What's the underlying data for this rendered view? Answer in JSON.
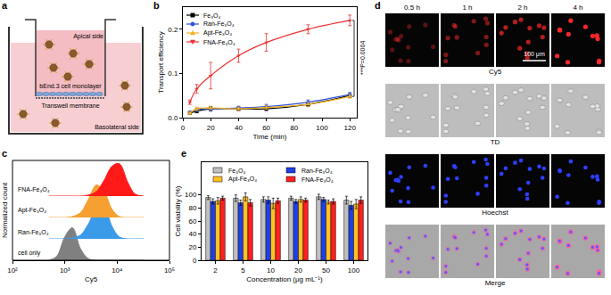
{
  "panel_labels": [
    "a",
    "b",
    "c",
    "d",
    "e"
  ],
  "diagram": {
    "apical": "Apical side",
    "monolayer": "bEnd.3 cell monolayer",
    "membrane": "Transwell membrane",
    "basolateral": "Basolateral side"
  },
  "micrographs": {
    "columns": [
      "0.5 h",
      "1 h",
      "2 h",
      "4 h"
    ],
    "rows": [
      "Cy5",
      "TD",
      "Hoechst",
      "Merge"
    ],
    "scale_bar": "100 μm"
  },
  "chart_data": [
    {
      "type": "line",
      "x_label": "Time (min)",
      "y_label": "Transport efficiency",
      "x": [
        5,
        10,
        20,
        40,
        60,
        90,
        120
      ],
      "xlim": [
        0,
        125
      ],
      "xticks": [
        0,
        20,
        40,
        60,
        80,
        100,
        120
      ],
      "ylim": [
        0,
        0.25
      ],
      "yticks": [
        {
          "value": 0,
          "label": "0.0"
        },
        0.1,
        0.2
      ],
      "legend": "upper left",
      "annotations": [
        {
          "text": "***P=0.0004"
        }
      ],
      "series": [
        {
          "name": "Fe₃O₄",
          "color": "#000000",
          "marker": "square",
          "values": [
            0.01,
            0.015,
            0.02,
            0.02,
            0.02,
            0.03,
            0.05
          ],
          "errors": [
            0.003,
            0.004,
            0.005,
            0.004,
            0.004,
            0.005,
            0.004
          ]
        },
        {
          "name": "Ran-Fe₃O₄",
          "color": "#2f4fd8",
          "marker": "circle",
          "values": [
            0.012,
            0.018,
            0.02,
            0.022,
            0.025,
            0.035,
            0.052
          ],
          "errors": [
            0.003,
            0.004,
            0.004,
            0.004,
            0.005,
            0.005,
            0.005
          ]
        },
        {
          "name": "Apt-Fe₃O₄",
          "color": "#f0b020",
          "marker": "triangle-up",
          "values": [
            0.01,
            0.02,
            0.022,
            0.02,
            0.023,
            0.03,
            0.048
          ],
          "errors": [
            0.003,
            0.004,
            0.004,
            0.004,
            0.004,
            0.005,
            0.004
          ]
        },
        {
          "name": "FNA-Fe₃O₄",
          "color": "#ee3030",
          "marker": "triangle-down",
          "values": [
            0.035,
            0.065,
            0.095,
            0.14,
            0.17,
            0.2,
            0.22
          ],
          "errors": [
            0.005,
            0.01,
            0.03,
            0.015,
            0.02,
            0.01,
            0.012
          ]
        }
      ]
    },
    {
      "type": "area",
      "x_label": "Cy5",
      "y_label": "Normalized count",
      "log": "x",
      "tick_labels": "x",
      "x": [
        500,
        700,
        1000,
        1400,
        2000,
        2800,
        4000,
        5600,
        8000,
        11000,
        16000,
        22000,
        32000
      ],
      "xlim": [
        100,
        100000
      ],
      "xticks": [
        {
          "value": 100,
          "label": "10²"
        },
        {
          "value": 1000,
          "label": "10³"
        },
        {
          "value": 10000,
          "label": "10⁴"
        },
        {
          "value": 100000,
          "label": "10⁵"
        }
      ],
      "ylim": [
        0,
        110
      ],
      "series": [
        {
          "name": "cell only",
          "color": "#808080",
          "values": [
            0,
            12,
            72,
            100,
            35,
            5,
            0,
            0,
            0,
            0,
            0,
            0,
            0
          ]
        },
        {
          "name": "Ran-Fe₃O₄",
          "color": "#3b9be8",
          "values": [
            0,
            0,
            0,
            3,
            12,
            45,
            92,
            100,
            38,
            6,
            0,
            0,
            0
          ]
        },
        {
          "name": "Apt-Fe₃O₄",
          "color": "#f5a030",
          "values": [
            0,
            0,
            0,
            3,
            15,
            55,
            100,
            82,
            25,
            3,
            0,
            0,
            0
          ]
        },
        {
          "name": "FNA-Fe₃O₄",
          "color": "#ff1a1a",
          "values": [
            0,
            0,
            0,
            0,
            0,
            3,
            14,
            48,
            92,
            100,
            42,
            6,
            0
          ]
        }
      ]
    },
    {
      "type": "bar",
      "x_label": "Concentration (μg mL⁻¹)",
      "y_label": "Cell viability (%)",
      "categories": [
        "2",
        "5",
        "10",
        "20",
        "50",
        "100"
      ],
      "ylim": [
        0,
        150
      ],
      "yticks": [
        0,
        20,
        40,
        60,
        80,
        100
      ],
      "legend": "upper center",
      "series": [
        {
          "name": "Fe₃O₄",
          "color": "#c0c0c0",
          "values": [
            96,
            95,
            93,
            95,
            97,
            92
          ],
          "errors": [
            3,
            5,
            4,
            3,
            4,
            6
          ]
        },
        {
          "name": "Ran-Fe₃O₄",
          "color": "#1f3fe8",
          "values": [
            90,
            88,
            92,
            90,
            93,
            84
          ],
          "errors": [
            4,
            4,
            5,
            3,
            3,
            6
          ]
        },
        {
          "name": "Apt-Fe₃O₄",
          "color": "#ffc125",
          "values": [
            91,
            97,
            87,
            93,
            89,
            86
          ],
          "errors": [
            5,
            6,
            8,
            4,
            3,
            7
          ]
        },
        {
          "name": "FNA-Fe₃O₄",
          "color": "#ff2020",
          "values": [
            95,
            88,
            91,
            92,
            90,
            92
          ],
          "errors": [
            3,
            5,
            4,
            3,
            4,
            5
          ]
        }
      ]
    }
  ]
}
